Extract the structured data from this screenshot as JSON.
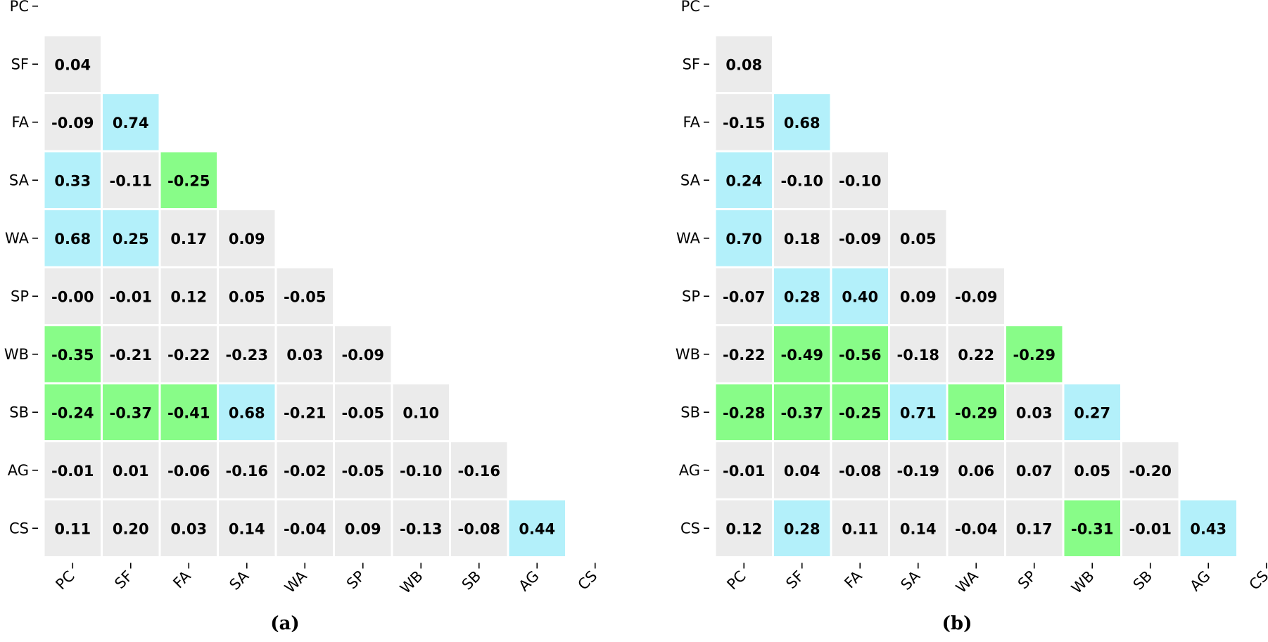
{
  "chart_data": [
    {
      "type": "heatmap",
      "panel_label": "(a)",
      "labels": [
        "PC",
        "SF",
        "FA",
        "SA",
        "WA",
        "SP",
        "WB",
        "SB",
        "AG",
        "CS"
      ],
      "lower_triangle": [
        [],
        [
          0.04
        ],
        [
          -0.09,
          0.74
        ],
        [
          0.33,
          -0.11,
          -0.25
        ],
        [
          0.68,
          0.25,
          0.17,
          0.09
        ],
        [
          -0.0,
          -0.01,
          0.12,
          0.05,
          -0.05
        ],
        [
          -0.35,
          -0.21,
          -0.22,
          -0.23,
          0.03,
          -0.09
        ],
        [
          -0.24,
          -0.37,
          -0.41,
          0.68,
          -0.21,
          -0.05,
          0.1
        ],
        [
          -0.01,
          0.01,
          -0.06,
          -0.16,
          -0.02,
          -0.05,
          -0.1,
          -0.16
        ],
        [
          0.11,
          0.2,
          0.03,
          0.14,
          -0.04,
          0.09,
          -0.13,
          -0.08,
          0.44
        ]
      ],
      "value_labels": [
        [],
        [
          "0.04"
        ],
        [
          "-0.09",
          "0.74"
        ],
        [
          "0.33",
          "-0.11",
          "-0.25"
        ],
        [
          "0.68",
          "0.25",
          "0.17",
          "0.09"
        ],
        [
          "-0.00",
          "-0.01",
          "0.12",
          "0.05",
          "-0.05"
        ],
        [
          "-0.35",
          "-0.21",
          "-0.22",
          "-0.23",
          "0.03",
          "-0.09"
        ],
        [
          "-0.24",
          "-0.37",
          "-0.41",
          "0.68",
          "-0.21",
          "-0.05",
          "0.10"
        ],
        [
          "-0.01",
          "0.01",
          "-0.06",
          "-0.16",
          "-0.02",
          "-0.05",
          "-0.10",
          "-0.16"
        ],
        [
          "0.11",
          "0.20",
          "0.03",
          "0.14",
          "-0.04",
          "0.09",
          "-0.13",
          "-0.08",
          "0.44"
        ]
      ]
    },
    {
      "type": "heatmap",
      "panel_label": "(b)",
      "labels": [
        "PC",
        "SF",
        "FA",
        "SA",
        "WA",
        "SP",
        "WB",
        "SB",
        "AG",
        "CS"
      ],
      "lower_triangle": [
        [],
        [
          0.08
        ],
        [
          -0.15,
          0.68
        ],
        [
          0.24,
          -0.1,
          -0.1
        ],
        [
          0.7,
          0.18,
          -0.09,
          0.05
        ],
        [
          -0.07,
          0.28,
          0.4,
          0.09,
          -0.09
        ],
        [
          -0.22,
          -0.49,
          -0.56,
          -0.18,
          0.22,
          -0.29
        ],
        [
          -0.28,
          -0.37,
          -0.25,
          0.71,
          -0.29,
          0.03,
          0.27
        ],
        [
          -0.01,
          0.04,
          -0.08,
          -0.19,
          0.06,
          0.07,
          0.05,
          -0.2
        ],
        [
          0.12,
          0.28,
          0.11,
          0.14,
          -0.04,
          0.17,
          -0.31,
          -0.01,
          0.43
        ]
      ],
      "value_labels": [
        [],
        [
          "0.08"
        ],
        [
          "-0.15",
          "0.68"
        ],
        [
          "0.24",
          "-0.10",
          "-0.10"
        ],
        [
          "0.70",
          "0.18",
          "-0.09",
          "0.05"
        ],
        [
          "-0.07",
          "0.28",
          "0.40",
          "0.09",
          "-0.09"
        ],
        [
          "-0.22",
          "-0.49",
          "-0.56",
          "-0.18",
          "0.22",
          "-0.29"
        ],
        [
          "-0.28",
          "-0.37",
          "-0.25",
          "0.71",
          "-0.29",
          "0.03",
          "0.27"
        ],
        [
          "-0.01",
          "0.04",
          "-0.08",
          "-0.19",
          "0.06",
          "0.07",
          "0.05",
          "-0.20"
        ],
        [
          "0.12",
          "0.28",
          "0.11",
          "0.14",
          "-0.04",
          "0.17",
          "-0.31",
          "-0.01",
          "0.43"
        ]
      ]
    }
  ],
  "colors": {
    "positive": "#b3f0fa",
    "negative": "#88fc88",
    "neutral": "#ebebeb",
    "threshold": 0.24
  }
}
